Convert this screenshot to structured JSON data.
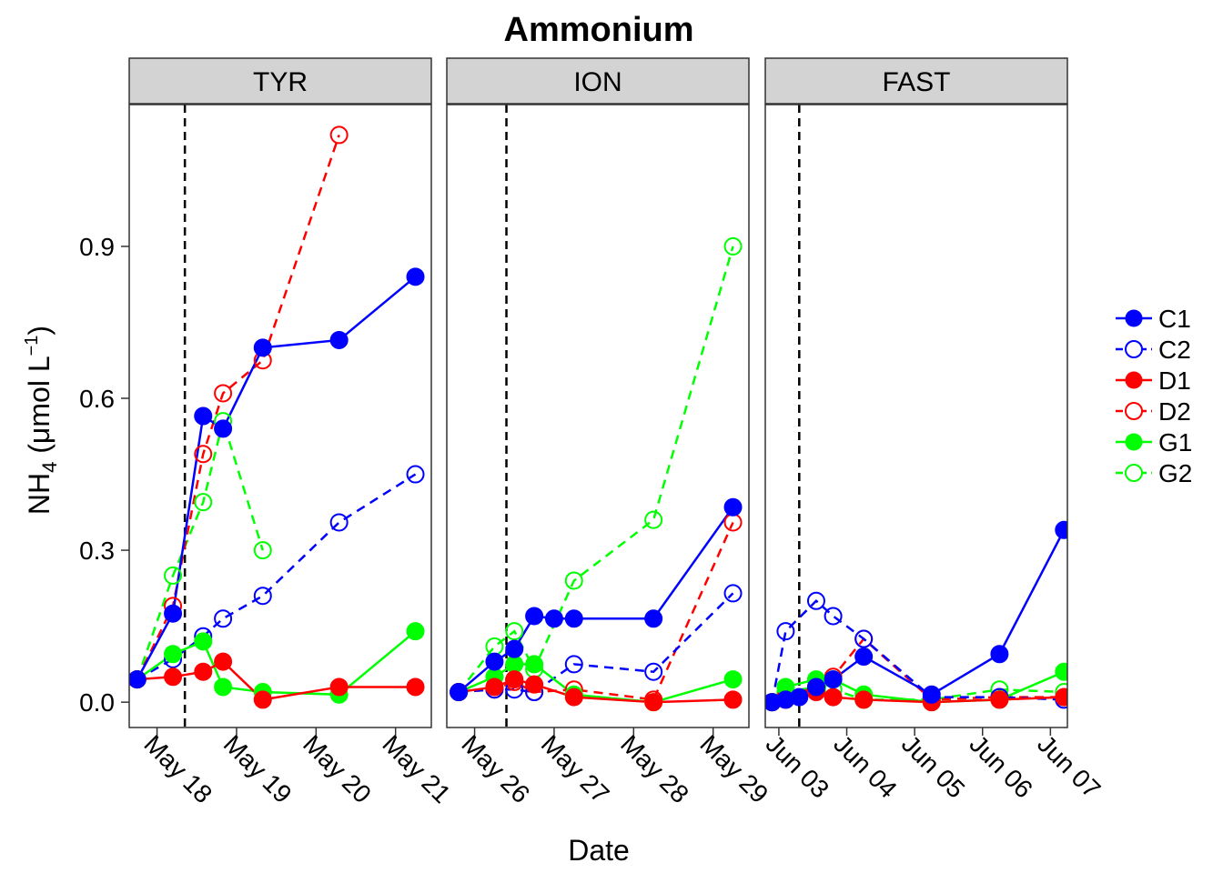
{
  "chart_data": {
    "type": "line",
    "title": "Ammonium",
    "xlabel": "Date",
    "ylabel": "NH₄ (μmol L⁻¹)",
    "ylabel_parts": {
      "main": "NH",
      "sub": "4",
      "open": " (μmol L",
      "sup": "−1",
      "close": ")"
    },
    "ylim": [
      -0.05,
      1.18
    ],
    "y_ticks": [
      0.0,
      0.3,
      0.6,
      0.9
    ],
    "y_tick_labels": [
      "0.0",
      "0.3",
      "0.6",
      "0.9"
    ],
    "grid": false,
    "legend_position": "right",
    "legend": [
      {
        "name": "C1",
        "color": "#0000FF",
        "filled": true,
        "dashed": false
      },
      {
        "name": "C2",
        "color": "#0000FF",
        "filled": false,
        "dashed": true
      },
      {
        "name": "D1",
        "color": "#FF0000",
        "filled": true,
        "dashed": false
      },
      {
        "name": "D2",
        "color": "#FF0000",
        "filled": false,
        "dashed": true
      },
      {
        "name": "G1",
        "color": "#00FF00",
        "filled": true,
        "dashed": false
      },
      {
        "name": "G2",
        "color": "#00FF00",
        "filled": false,
        "dashed": true
      }
    ],
    "panels": [
      {
        "name": "TYR",
        "x_start": "2014-05-17",
        "xlim": [
          0.65,
          4.45
        ],
        "ticks": [
          1,
          2,
          3,
          4
        ],
        "tick_labels": [
          "May 18",
          "May 19",
          "May 20",
          "May 21"
        ],
        "vline": 1.35,
        "series": [
          {
            "name": "C1",
            "x": [
              0.75,
              1.2,
              1.58,
              1.83,
              2.33,
              3.29,
              4.25
            ],
            "y": [
              0.045,
              0.175,
              0.565,
              0.54,
              0.7,
              0.715,
              0.84
            ]
          },
          {
            "name": "C2",
            "x": [
              0.75,
              1.2,
              1.58,
              1.83,
              2.33,
              3.29,
              4.25
            ],
            "y": [
              0.045,
              0.085,
              0.13,
              0.165,
              0.21,
              0.355,
              0.45
            ]
          },
          {
            "name": "D1",
            "x": [
              0.75,
              1.2,
              1.58,
              1.83,
              2.33,
              3.29,
              4.25
            ],
            "y": [
              0.045,
              0.05,
              0.06,
              0.08,
              0.005,
              0.03,
              0.03
            ]
          },
          {
            "name": "D2",
            "x": [
              0.75,
              1.2,
              1.58,
              1.83,
              2.33,
              3.29
            ],
            "y": [
              0.045,
              0.19,
              0.49,
              0.61,
              0.675,
              1.12
            ]
          },
          {
            "name": "G1",
            "x": [
              0.75,
              1.2,
              1.58,
              1.83,
              2.33,
              3.29,
              4.25
            ],
            "y": [
              0.045,
              0.095,
              0.12,
              0.03,
              0.02,
              0.015,
              0.14
            ]
          },
          {
            "name": "G2",
            "x": [
              0.75,
              1.2,
              1.58,
              1.83,
              2.33
            ],
            "y": [
              0.045,
              0.25,
              0.395,
              0.555,
              0.3
            ]
          }
        ]
      },
      {
        "name": "ION",
        "x_start": "2014-05-25",
        "xlim": [
          0.65,
          4.45
        ],
        "ticks": [
          1,
          2,
          3,
          4
        ],
        "tick_labels": [
          "May 26",
          "May 27",
          "May 28",
          "May 29"
        ],
        "vline": 1.4,
        "series": [
          {
            "name": "C1",
            "x": [
              0.8,
              1.25,
              1.5,
              1.75,
              2.0,
              2.25,
              3.25,
              4.25
            ],
            "y": [
              0.02,
              0.08,
              0.105,
              0.17,
              0.165,
              0.165,
              0.165,
              0.385
            ]
          },
          {
            "name": "C2",
            "x": [
              0.8,
              1.25,
              1.5,
              1.75,
              2.25,
              3.25,
              4.25
            ],
            "y": [
              0.02,
              0.025,
              0.025,
              0.02,
              0.075,
              0.06,
              0.215
            ]
          },
          {
            "name": "D1",
            "x": [
              0.8,
              1.25,
              1.5,
              1.75,
              2.25,
              3.25,
              4.25
            ],
            "y": [
              0.02,
              0.03,
              0.045,
              0.035,
              0.01,
              0.0,
              0.005
            ]
          },
          {
            "name": "D2",
            "x": [
              0.8,
              1.25,
              1.5,
              1.75,
              2.25,
              3.25,
              4.25
            ],
            "y": [
              0.02,
              0.025,
              0.04,
              0.02,
              0.025,
              0.005,
              0.355
            ]
          },
          {
            "name": "G1",
            "x": [
              0.8,
              1.25,
              1.5,
              1.75,
              2.25,
              3.25,
              4.25
            ],
            "y": [
              0.02,
              0.05,
              0.075,
              0.075,
              0.015,
              0.0,
              0.045
            ]
          },
          {
            "name": "G2",
            "x": [
              0.8,
              1.25,
              1.5,
              1.75,
              2.25,
              3.25,
              4.25
            ],
            "y": [
              0.02,
              0.11,
              0.14,
              0.065,
              0.24,
              0.36,
              0.9
            ]
          }
        ]
      },
      {
        "name": "FAST",
        "x_start": "2014-06-02",
        "xlim": [
          0.8,
          5.25
        ],
        "ticks": [
          1,
          2,
          3,
          4,
          5
        ],
        "tick_labels": [
          "Jun 03",
          "Jun 04",
          "Jun 05",
          "Jun 06",
          "Jun 07"
        ],
        "vline": 1.3,
        "series": [
          {
            "name": "C1",
            "x": [
              0.9,
              1.1,
              1.3,
              1.55,
              1.8,
              2.25,
              3.25,
              4.25,
              5.2
            ],
            "y": [
              0.0,
              0.005,
              0.01,
              0.03,
              0.045,
              0.09,
              0.015,
              0.095,
              0.34
            ]
          },
          {
            "name": "C2",
            "x": [
              0.9,
              1.1,
              1.55,
              1.8,
              2.25,
              3.25,
              4.25,
              5.2
            ],
            "y": [
              0.0,
              0.14,
              0.2,
              0.17,
              0.125,
              0.01,
              0.01,
              0.005
            ]
          },
          {
            "name": "D1",
            "x": [
              0.9,
              1.1,
              1.55,
              1.8,
              2.25,
              3.25,
              4.25,
              5.2
            ],
            "y": [
              0.0,
              0.005,
              0.02,
              0.01,
              0.005,
              0.0,
              0.005,
              0.01
            ]
          },
          {
            "name": "D2",
            "x": [
              0.9,
              1.1,
              1.55,
              1.8,
              2.25,
              3.25,
              4.25,
              5.2
            ],
            "y": [
              0.0,
              0.01,
              0.03,
              0.05,
              0.125,
              0.005,
              0.01,
              0.01
            ]
          },
          {
            "name": "G1",
            "x": [
              0.9,
              1.1,
              1.55,
              1.8,
              2.25,
              3.25,
              4.25,
              5.2
            ],
            "y": [
              0.0,
              0.03,
              0.045,
              0.045,
              0.015,
              0.0,
              0.005,
              0.06
            ]
          },
          {
            "name": "G2",
            "x": [
              0.9,
              1.1,
              1.55,
              1.8,
              2.25,
              3.25,
              4.25,
              5.2
            ],
            "y": [
              0.0,
              0.02,
              0.03,
              0.025,
              0.005,
              0.005,
              0.025,
              0.02
            ]
          }
        ]
      }
    ]
  }
}
